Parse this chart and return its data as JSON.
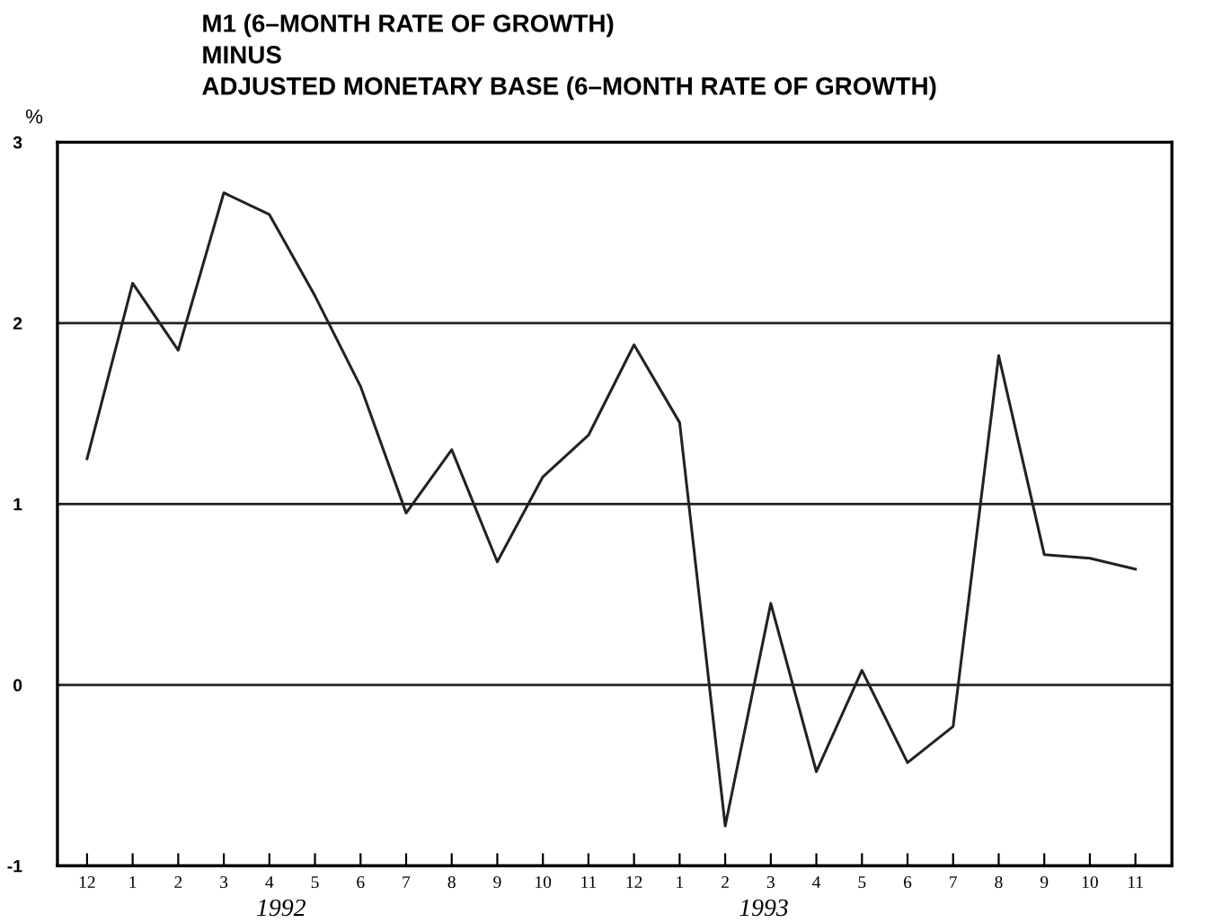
{
  "chart_data": {
    "type": "line",
    "title": "M1 (6–MONTH RATE OF GROWTH)\nMINUS\nADJUSTED MONETARY BASE (6–MONTH RATE OF GROWTH)",
    "ylabel": "%",
    "categories": [
      "12",
      "1",
      "2",
      "3",
      "4",
      "5",
      "6",
      "7",
      "8",
      "9",
      "10",
      "11",
      "12",
      "1",
      "2",
      "3",
      "4",
      "5",
      "6",
      "7",
      "8",
      "9",
      "10",
      "11"
    ],
    "series": [
      {
        "color": "#222222",
        "values": [
          1.25,
          2.22,
          1.85,
          2.72,
          2.6,
          2.15,
          1.65,
          0.95,
          1.3,
          0.68,
          1.15,
          1.38,
          1.88,
          1.45,
          -0.78,
          0.45,
          -0.48,
          0.08,
          -0.43,
          -0.23,
          1.82,
          0.72,
          0.7,
          0.64
        ]
      }
    ],
    "ylim": [
      -1,
      3
    ],
    "yticks": [
      -1,
      0,
      1,
      2,
      3
    ],
    "grid": "y",
    "legend": false,
    "marker": "none",
    "line_style": "solid",
    "annotations": [
      "1992",
      "1993"
    ]
  }
}
